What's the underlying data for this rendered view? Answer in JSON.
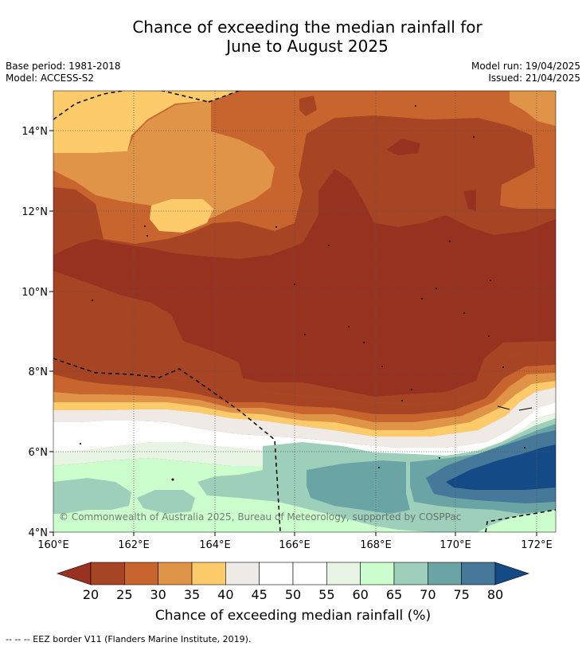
{
  "title_line1": "Chance of exceeding the median rainfall for",
  "title_line2": "June to August 2025",
  "meta_left": {
    "base_period": "Base period: 1981-2018",
    "model": "Model: ACCESS-S2"
  },
  "meta_right": {
    "model_run": "Model run: 19/04/2025",
    "issued": "Issued: 21/04/2025"
  },
  "map": {
    "lon_range": [
      160,
      172.5
    ],
    "lat_range": [
      4,
      15
    ],
    "lon_ticks": [
      "160°E",
      "162°E",
      "164°E",
      "166°E",
      "168°E",
      "170°E",
      "172°E"
    ],
    "lat_ticks": [
      "4°N",
      "6°N",
      "8°N",
      "10°N",
      "12°N",
      "14°N"
    ],
    "copyright": "© Commonwealth of Australia 2025, Bureau of Meteorology, supported by COSPPac",
    "grid": true
  },
  "colorbar": {
    "levels": [
      "20",
      "25",
      "30",
      "35",
      "40",
      "45",
      "50",
      "55",
      "60",
      "65",
      "70",
      "75",
      "80"
    ],
    "colors": [
      "#a74424",
      "#c8642e",
      "#e09447",
      "#fdcb6a",
      "#efeae6",
      "#ffffff",
      "#ffffff",
      "#e8f5e4",
      "#ccfdcc",
      "#9dcfbb",
      "#6ba4a5",
      "#457899"
    ],
    "under_color": "#973220",
    "over_color": "#144b87",
    "title": "Chance of exceeding median rainfall (%)"
  },
  "footer": "--  --  -- EEZ border V11 (Flanders Marine Institute, 2019)."
}
